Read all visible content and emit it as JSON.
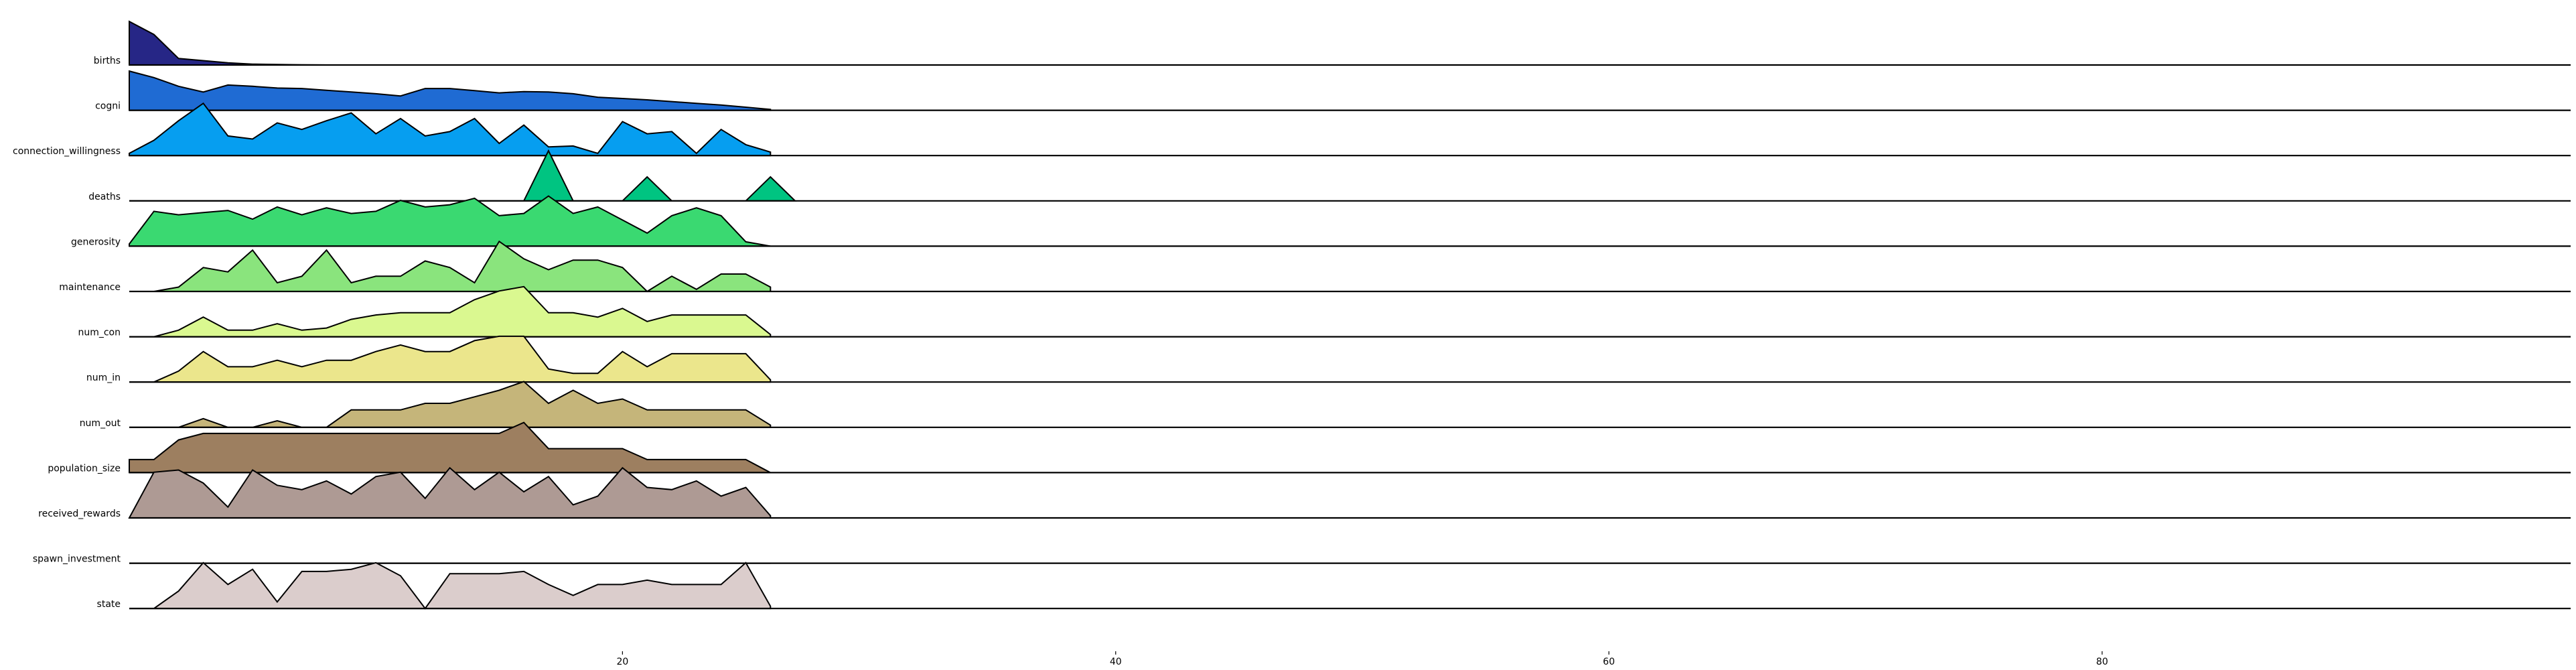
{
  "chart_data": {
    "type": "area",
    "title": "",
    "xlabel": "",
    "ylabel": "",
    "xlim": [
      0,
      99
    ],
    "x_ticks": [
      20,
      40,
      60,
      80
    ],
    "grid": false,
    "legend": "none",
    "series": [
      {
        "name": "births",
        "color": "#262686",
        "x_end": 26,
        "values": [
          1.0,
          0.7,
          0.15,
          0.1,
          0.05,
          0.02,
          0.01,
          0.005,
          0,
          0,
          0,
          0,
          0,
          0,
          0,
          0,
          0,
          0,
          0,
          0,
          0,
          0,
          0,
          0,
          0,
          0,
          0
        ]
      },
      {
        "name": "cogni",
        "color": "#1f6bd3",
        "x_end": 26,
        "values": [
          0.9,
          0.75,
          0.55,
          0.42,
          0.58,
          0.55,
          0.51,
          0.5,
          0.46,
          0.42,
          0.38,
          0.33,
          0.5,
          0.5,
          0.45,
          0.4,
          0.43,
          0.42,
          0.38,
          0.3,
          0.27,
          0.24,
          0.2,
          0.16,
          0.12,
          0.07,
          0.02
        ]
      },
      {
        "name": "connection_willingness",
        "color": "#069ef0",
        "x_end": 26,
        "values": [
          0.05,
          0.35,
          0.8,
          1.2,
          0.45,
          0.38,
          0.75,
          0.6,
          0.8,
          0.98,
          0.5,
          0.85,
          0.45,
          0.55,
          0.85,
          0.28,
          0.7,
          0.2,
          0.22,
          0.05,
          0.78,
          0.5,
          0.55,
          0.05,
          0.6,
          0.25,
          0.08
        ]
      },
      {
        "name": "deaths",
        "color": "#00c481",
        "x_end": 27,
        "values": [
          0,
          0,
          0,
          0,
          0,
          0,
          0,
          0,
          0,
          0,
          0,
          0,
          0,
          0,
          0,
          0,
          0,
          1.15,
          0,
          0,
          0,
          0.55,
          0,
          0,
          0,
          0,
          0.55,
          0
        ]
      },
      {
        "name": "generosity",
        "color": "#3ad971",
        "x_end": 26,
        "values": [
          0.05,
          0.8,
          0.72,
          0.77,
          0.82,
          0.62,
          0.9,
          0.72,
          0.88,
          0.75,
          0.8,
          1.05,
          0.9,
          0.95,
          1.1,
          0.7,
          0.75,
          1.15,
          0.75,
          0.9,
          0.6,
          0.3,
          0.7,
          0.88,
          0.7,
          0.1,
          0.0
        ]
      },
      {
        "name": "maintenance",
        "color": "#8ae47d",
        "x_end": 26,
        "values": [
          0,
          0,
          0.1,
          0.55,
          0.45,
          0.95,
          0.2,
          0.35,
          0.95,
          0.2,
          0.35,
          0.35,
          0.7,
          0.55,
          0.2,
          1.15,
          0.75,
          0.5,
          0.72,
          0.72,
          0.55,
          0.0,
          0.35,
          0.05,
          0.4,
          0.4,
          0.1
        ]
      },
      {
        "name": "num_con",
        "color": "#daf890",
        "x_end": 26,
        "values": [
          0,
          0,
          0.15,
          0.45,
          0.15,
          0.15,
          0.3,
          0.15,
          0.2,
          0.4,
          0.5,
          0.55,
          0.55,
          0.55,
          0.85,
          1.05,
          1.15,
          0.55,
          0.55,
          0.45,
          0.65,
          0.35,
          0.5,
          0.5,
          0.5,
          0.5,
          0.05
        ]
      },
      {
        "name": "num_in",
        "color": "#ebe68c",
        "x_end": 26,
        "values": [
          0,
          0,
          0.25,
          0.7,
          0.35,
          0.35,
          0.5,
          0.35,
          0.5,
          0.5,
          0.7,
          0.85,
          0.7,
          0.7,
          0.95,
          1.05,
          1.05,
          0.3,
          0.2,
          0.2,
          0.7,
          0.35,
          0.65,
          0.65,
          0.65,
          0.65,
          0.05
        ]
      },
      {
        "name": "num_out",
        "color": "#c5b57a",
        "x_end": 26,
        "values": [
          0,
          0,
          0,
          0.2,
          0,
          0,
          0.15,
          0,
          0,
          0.4,
          0.4,
          0.4,
          0.55,
          0.55,
          0.7,
          0.85,
          1.05,
          0.55,
          0.85,
          0.55,
          0.65,
          0.4,
          0.4,
          0.4,
          0.4,
          0.4,
          0.05
        ]
      },
      {
        "name": "population_size",
        "color": "#9d7f60",
        "x_end": 26,
        "values": [
          0.3,
          0.3,
          0.75,
          0.9,
          0.9,
          0.9,
          0.9,
          0.9,
          0.9,
          0.9,
          0.9,
          0.9,
          0.9,
          0.9,
          0.9,
          0.9,
          1.15,
          0.55,
          0.55,
          0.55,
          0.55,
          0.3,
          0.3,
          0.3,
          0.3,
          0.3,
          0.0
        ]
      },
      {
        "name": "received_rewards",
        "color": "#ae9a94",
        "x_end": 26,
        "values": [
          0,
          1.05,
          1.1,
          0.8,
          0.25,
          1.1,
          0.75,
          0.65,
          0.85,
          0.55,
          0.95,
          1.05,
          0.45,
          1.15,
          0.65,
          1.05,
          0.6,
          0.95,
          0.3,
          0.5,
          1.15,
          0.7,
          0.65,
          0.85,
          0.5,
          0.7,
          0.05
        ]
      },
      {
        "name": "spawn_investment",
        "color": "#fcfcfc",
        "x_end": 26,
        "values": [
          0,
          0,
          0,
          0,
          0,
          0,
          0,
          0,
          0,
          0,
          0,
          0,
          0,
          0,
          0,
          0,
          0,
          0,
          0,
          0,
          0,
          0,
          0,
          0,
          0,
          0,
          0
        ]
      },
      {
        "name": "state",
        "color": "#dbcdcc",
        "x_end": 26,
        "values": [
          0,
          0,
          0.4,
          1.05,
          0.55,
          0.9,
          0.15,
          0.85,
          0.85,
          0.9,
          1.05,
          0.75,
          0.0,
          0.8,
          0.8,
          0.8,
          0.85,
          0.55,
          0.3,
          0.55,
          0.55,
          0.65,
          0.55,
          0.55,
          0.55,
          1.05,
          0.05
        ]
      }
    ]
  }
}
